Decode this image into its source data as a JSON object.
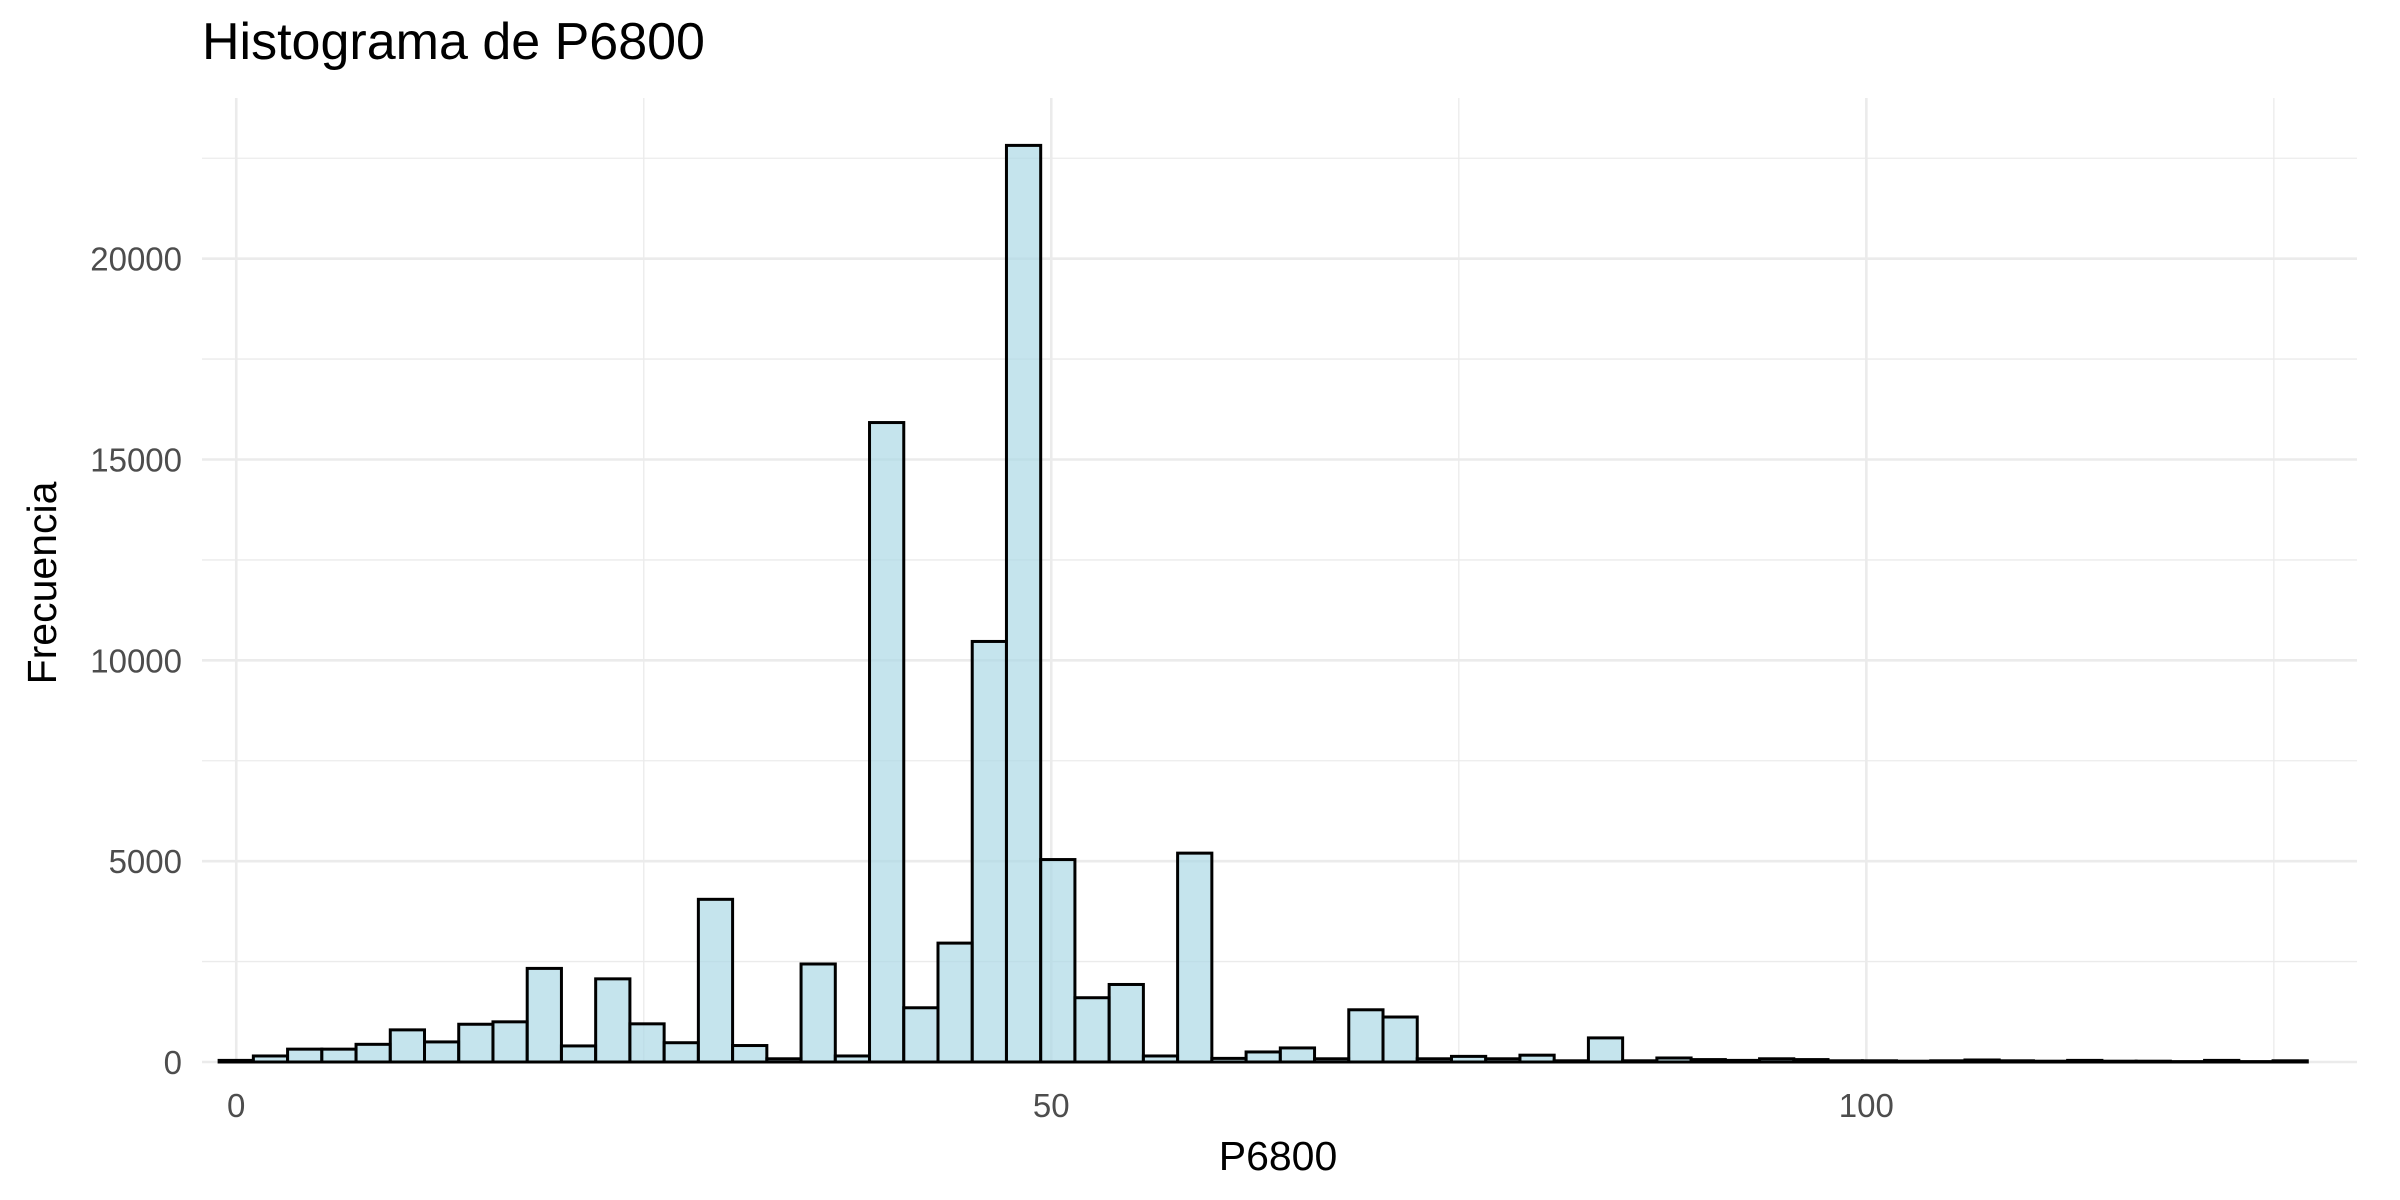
{
  "chart_data": {
    "type": "bar",
    "subtype": "histogram",
    "title": "Histograma de P6800",
    "xlabel": "P6800",
    "ylabel": "Frecuencia",
    "xlim": [
      -2.1,
      130.1
    ],
    "ylim": [
      0,
      24000
    ],
    "x_ticks": [
      0,
      50,
      100
    ],
    "x_tick_labels": [
      "0",
      "50",
      "100"
    ],
    "y_ticks": [
      0,
      5000,
      10000,
      15000,
      20000
    ],
    "y_tick_labels": [
      "0",
      "5000",
      "10000",
      "15000",
      "20000"
    ],
    "grid": true,
    "legend": "none",
    "bin_width": 2.1,
    "bin_start": -1.05,
    "values": [
      40,
      150,
      320,
      320,
      440,
      800,
      500,
      940,
      1000,
      2330,
      400,
      2070,
      950,
      480,
      4050,
      410,
      80,
      2440,
      150,
      15920,
      1350,
      2960,
      10470,
      22820,
      5040,
      1600,
      1930,
      150,
      5200,
      90,
      250,
      350,
      80,
      1300,
      1120,
      80,
      140,
      80,
      170,
      30,
      600,
      30,
      100,
      60,
      40,
      80,
      60,
      30,
      30,
      20,
      30,
      50,
      30,
      20,
      40,
      20,
      20,
      10,
      40,
      10,
      30
    ],
    "colors": {
      "bar_fill": "#add8e6",
      "bar_fill_opacity": 0.7,
      "bar_stroke": "#000000",
      "grid": "#ebebeb",
      "tick_text": "#4d4d4d",
      "title_text": "#000000"
    }
  }
}
